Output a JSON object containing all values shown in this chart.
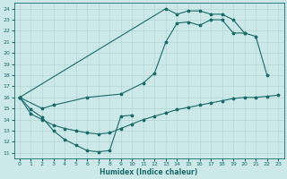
{
  "bg_color": "#cce8e8",
  "line_color": "#1a6b6b",
  "xlim": [
    -0.5,
    23.5
  ],
  "ylim": [
    10.5,
    24.5
  ],
  "xlabel": "Humidex (Indice chaleur)",
  "curve1_x": [
    0,
    1,
    2,
    3,
    4,
    5,
    6,
    7,
    8,
    9,
    10
  ],
  "curve1_y": [
    16.0,
    14.9,
    14.2,
    13.0,
    12.2,
    11.7,
    11.2,
    11.1,
    11.2,
    14.3,
    14.4
  ],
  "curve2_x": [
    0,
    2,
    3,
    6,
    9,
    11,
    12,
    13,
    14,
    15,
    16,
    17,
    18,
    19,
    20
  ],
  "curve2_y": [
    16.0,
    15.0,
    15.3,
    16.0,
    16.3,
    17.3,
    18.2,
    21.0,
    22.7,
    22.8,
    22.5,
    23.0,
    23.0,
    21.8,
    21.8
  ],
  "curve3_x": [
    0,
    13,
    14,
    15,
    16,
    17,
    18,
    19,
    20,
    21,
    22
  ],
  "curve3_y": [
    16.0,
    24.0,
    23.5,
    23.8,
    23.8,
    23.5,
    23.5,
    23.0,
    21.8,
    21.5,
    18.0
  ],
  "curve4_x": [
    0,
    1,
    2,
    3,
    4,
    5,
    6,
    7,
    8,
    9,
    10,
    11,
    12,
    13,
    14,
    15,
    16,
    17,
    18,
    19,
    20,
    21,
    22,
    23
  ],
  "curve4_y": [
    16.0,
    14.5,
    14.0,
    13.5,
    13.2,
    13.0,
    12.8,
    12.7,
    12.8,
    13.2,
    13.6,
    14.0,
    14.3,
    14.6,
    14.9,
    15.1,
    15.3,
    15.5,
    15.7,
    15.9,
    16.0,
    16.0,
    16.1,
    16.2
  ]
}
